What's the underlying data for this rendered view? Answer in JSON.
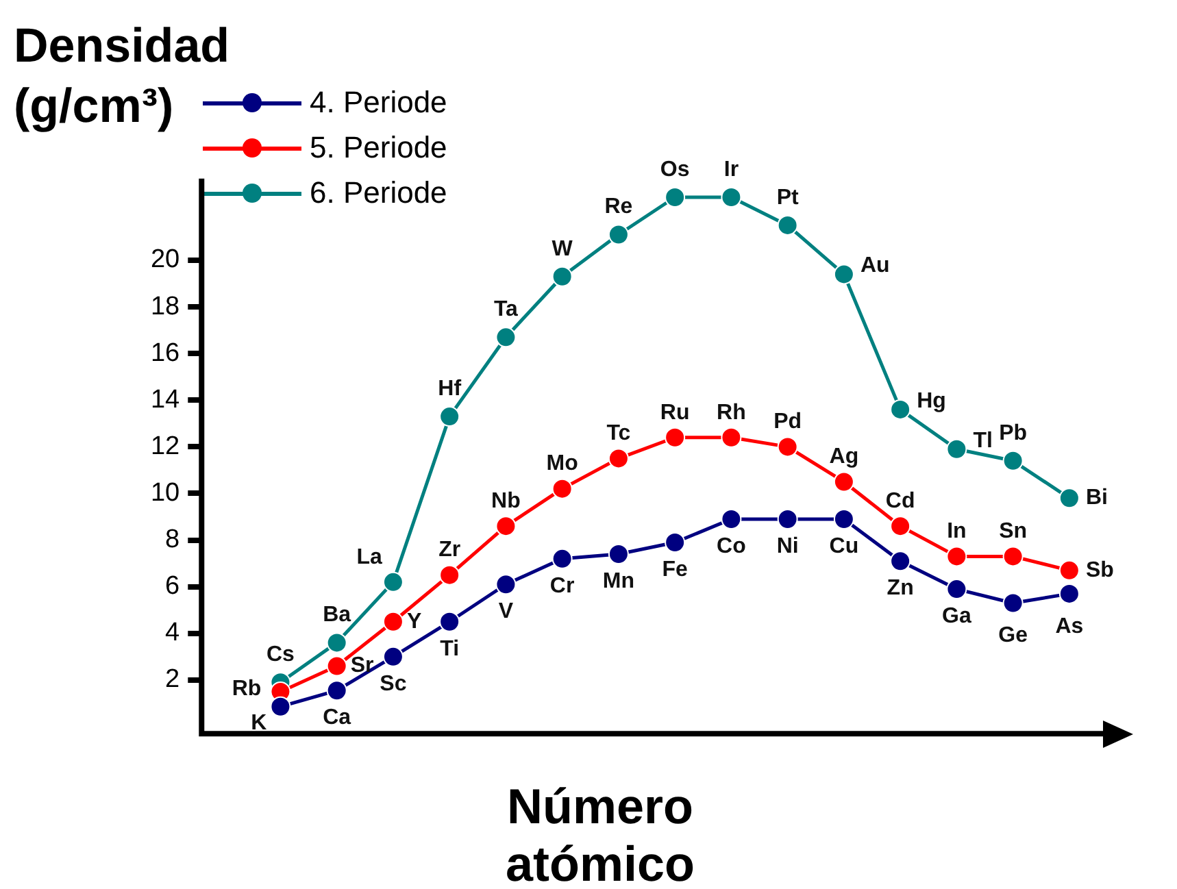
{
  "chart_data": {
    "type": "line",
    "ylabel": "Densidad (g/cm³)",
    "xlabel": "Número atómico",
    "categories": [
      null,
      null,
      null,
      null,
      null,
      null,
      null,
      null,
      null,
      null,
      null,
      null,
      null,
      null,
      null
    ],
    "series": [
      {
        "name": "4. Periode",
        "color": "#000080",
        "values": [
          0.86,
          1.55,
          3.0,
          4.5,
          6.1,
          7.2,
          7.4,
          7.9,
          8.9,
          8.9,
          8.9,
          7.1,
          5.9,
          5.3,
          5.7
        ],
        "value_labels": [
          "K",
          "Ca",
          "Sc",
          "Ti",
          "V",
          "Cr",
          "Mn",
          "Fe",
          "Co",
          "Ni",
          "Cu",
          "Zn",
          "Ga",
          "Ge",
          "As"
        ]
      },
      {
        "name": "5. Periode",
        "color": "#ff0000",
        "values": [
          1.5,
          2.6,
          4.5,
          6.5,
          8.6,
          10.2,
          11.5,
          12.4,
          12.4,
          12.0,
          10.5,
          8.6,
          7.3,
          7.3,
          6.7
        ],
        "value_labels": [
          "Rb",
          "Sr",
          "Y",
          "Zr",
          "Nb",
          "Mo",
          "Tc",
          "Ru",
          "Rh",
          "Pd",
          "Ag",
          "Cd",
          "In",
          "Sn",
          "Sb"
        ]
      },
      {
        "name": "6. Periode",
        "color": "#008080",
        "values": [
          1.9,
          3.6,
          6.2,
          13.3,
          16.7,
          19.3,
          21.1,
          22.7,
          22.7,
          21.5,
          19.4,
          13.6,
          11.9,
          11.4,
          9.8
        ],
        "value_labels": [
          "Cs",
          "Ba",
          "La",
          "Hf",
          "Ta",
          "W",
          "Re",
          "Os",
          "Ir",
          "Pt",
          "Au",
          "Hg",
          "Tl",
          "Pb",
          "Bi"
        ]
      }
    ],
    "ylim": [
      -0.3,
      23.5
    ],
    "yticks": [
      2,
      4,
      6,
      8,
      10,
      12,
      14,
      16,
      18,
      20
    ],
    "tick_labels": "y",
    "grid": false,
    "legend": "top left",
    "marker": "circle",
    "line_style": "solid"
  }
}
